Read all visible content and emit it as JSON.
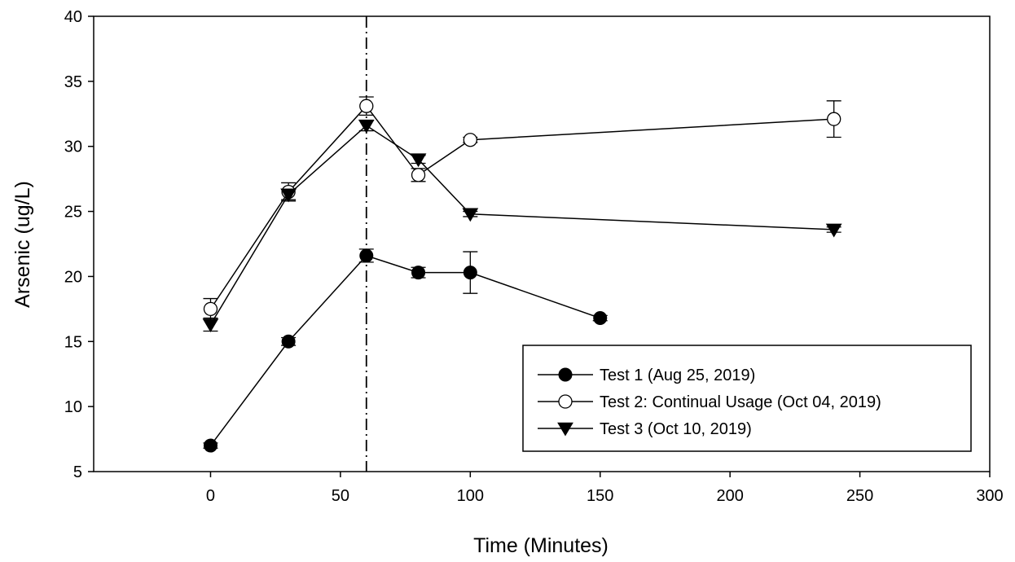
{
  "chart_data": {
    "type": "line",
    "xlabel": "Time (Minutes)",
    "ylabel": "Arsenic (ug/L)",
    "xlim": [
      -45,
      300
    ],
    "ylim": [
      5,
      40
    ],
    "xticks": [
      0,
      50,
      100,
      150,
      200,
      250,
      300
    ],
    "yticks": [
      5,
      10,
      15,
      20,
      25,
      30,
      35,
      40
    ],
    "grid": false,
    "legend_position": "bottom-right",
    "reference_line": {
      "x": 60,
      "style": "dash-dot"
    },
    "series": [
      {
        "name": "Test 1 (Aug 25, 2019)",
        "marker": "filled-circle",
        "x": [
          0,
          30,
          60,
          80,
          100,
          150
        ],
        "y": [
          7.0,
          15.0,
          21.6,
          20.3,
          20.3,
          16.8
        ],
        "error": [
          0.2,
          0.3,
          0.5,
          0.4,
          1.6,
          0.2
        ]
      },
      {
        "name": "Test 2: Continual Usage (Oct 04, 2019)",
        "marker": "open-circle",
        "x": [
          0,
          30,
          60,
          80,
          100,
          240
        ],
        "y": [
          17.5,
          26.5,
          33.1,
          27.8,
          30.5,
          32.1
        ],
        "error": [
          0.8,
          0.7,
          0.7,
          0.5,
          0.2,
          1.4
        ]
      },
      {
        "name": "Test 3 (Oct 10, 2019)",
        "marker": "filled-triangle-down",
        "x": [
          0,
          30,
          60,
          80,
          100,
          240
        ],
        "y": [
          16.3,
          26.3,
          31.6,
          29.0,
          24.8,
          23.6
        ],
        "error": [
          0.5,
          0.4,
          0.4,
          0.3,
          0.2,
          0.2
        ]
      }
    ]
  }
}
